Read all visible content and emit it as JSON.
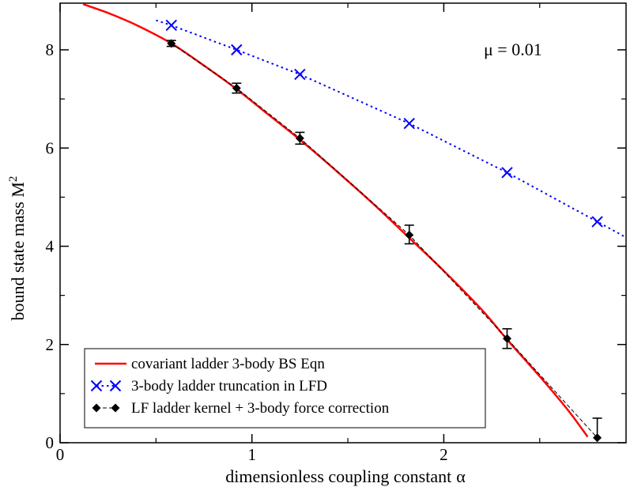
{
  "chart_data": {
    "type": "line",
    "title": "",
    "xlabel": "dimensionless coupling constant",
    "xlabel_symbol": "α",
    "ylabel": "bound state mass M",
    "ylabel_sup": "2",
    "xlim": [
      0,
      2.95
    ],
    "ylim": [
      0,
      8.95
    ],
    "x_ticks": [
      "0",
      "1",
      "2"
    ],
    "y_ticks": [
      "0",
      "2",
      "4",
      "6",
      "8"
    ],
    "annotation": "μ = 0.01",
    "legend_position": "bottom-left",
    "colors": {
      "red": "#ff0000",
      "blue": "#0000ff",
      "black": "#000000"
    },
    "series": [
      {
        "name": "covariant ladder 3-body BS Eqn",
        "style": "solid-line",
        "color": "#ff0000",
        "x": [
          0.12,
          0.25,
          0.4,
          0.58,
          0.75,
          0.92,
          1.08,
          1.25,
          1.45,
          1.65,
          1.82,
          2.0,
          2.2,
          2.33,
          2.5,
          2.65,
          2.75
        ],
        "y": [
          8.93,
          8.75,
          8.5,
          8.13,
          7.68,
          7.2,
          6.7,
          6.17,
          5.5,
          4.8,
          4.17,
          3.5,
          2.7,
          2.1,
          1.35,
          0.65,
          0.12
        ]
      },
      {
        "name": "3-body ladder truncation in LFD",
        "style": "dotted-line-x-markers",
        "color": "#0000ff",
        "x": [
          0.58,
          0.92,
          1.25,
          1.82,
          2.33,
          2.8
        ],
        "y": [
          8.5,
          8.0,
          7.5,
          6.5,
          5.5,
          4.5
        ],
        "curve_x": [
          0.5,
          0.58,
          0.92,
          1.25,
          1.82,
          2.33,
          2.8,
          2.95
        ],
        "curve_y": [
          8.6,
          8.5,
          8.0,
          7.5,
          6.5,
          5.5,
          4.5,
          4.18
        ]
      },
      {
        "name": "LF ladder kernel + 3-body force correction",
        "style": "dashed-line-diamond-markers",
        "color": "#000000",
        "x": [
          0.58,
          0.92,
          1.25,
          1.82,
          2.33,
          2.8
        ],
        "y": [
          8.13,
          7.22,
          6.2,
          4.23,
          2.12,
          0.1
        ],
        "err_low": [
          0.06,
          0.1,
          0.12,
          0.18,
          0.2,
          0.0
        ],
        "err_high": [
          0.06,
          0.1,
          0.12,
          0.2,
          0.2,
          0.4
        ]
      }
    ]
  }
}
